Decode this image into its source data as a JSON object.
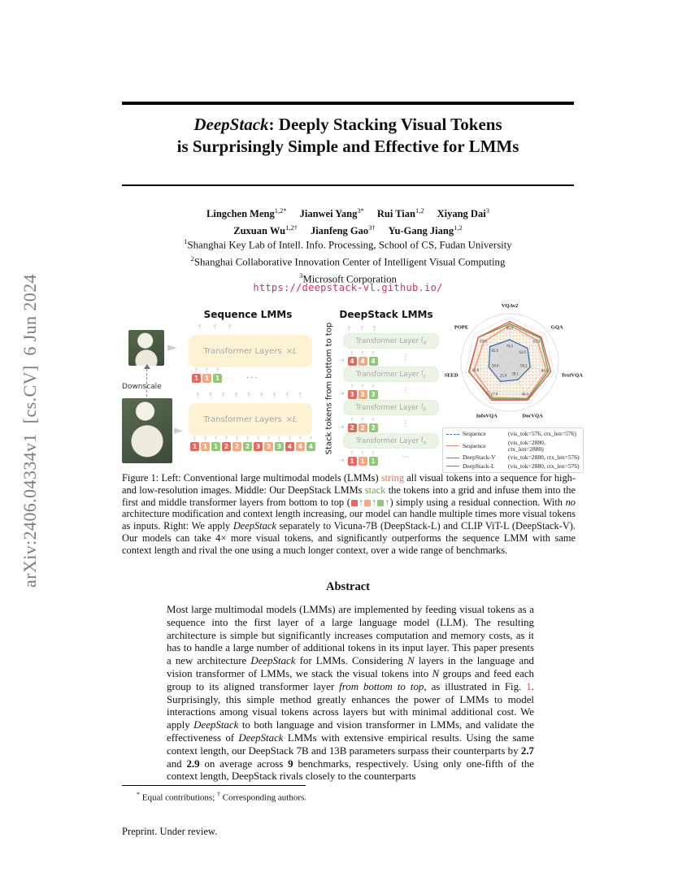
{
  "stamp": {
    "text": "arXiv:2406.04334v1  [cs.CV]  6 Jun 2024"
  },
  "title": {
    "brand": "DeepStack",
    "line1_rest": ": Deeply Stacking Visual Tokens",
    "line2": "is Surprisingly Simple and Effective for LMMs"
  },
  "authors": {
    "rows": [
      [
        {
          "name": "Lingchen Meng",
          "sup": "1,2*"
        },
        {
          "name": "Jianwei Yang",
          "sup": "3*"
        },
        {
          "name": "Rui Tian",
          "sup": "1,2"
        },
        {
          "name": "Xiyang Dai",
          "sup": "3"
        }
      ],
      [
        {
          "name": "Zuxuan Wu",
          "sup": "1,2†"
        },
        {
          "name": "Jianfeng Gao",
          "sup": "3†"
        },
        {
          "name": "Yu-Gang Jiang",
          "sup": "1,2"
        }
      ]
    ]
  },
  "affiliations": [
    {
      "sup": "1",
      "text": "Shanghai Key Lab of Intell. Info. Processing, School of CS, Fudan University"
    },
    {
      "sup": "2",
      "text": "Shanghai Collaborative Innovation Center of Intelligent Visual Computing"
    },
    {
      "sup": "3",
      "text": "Microsoft Corporation"
    }
  ],
  "links": {
    "project_url": "https://deepstack-vl.github.io/"
  },
  "palette": {
    "r": "#e06a5b",
    "s": "#f3a97d",
    "g": "#93c67d",
    "arrow": "#b9b9b9"
  },
  "figure": {
    "left": {
      "title": "Sequence LMMs",
      "downscale_label": "Downscale",
      "box_label": "Transformer Layers",
      "box_mult": "×L",
      "top_tokens": [
        {
          "n": "1",
          "c": "r"
        },
        {
          "n": "1",
          "c": "s"
        },
        {
          "n": "1",
          "c": "g"
        }
      ],
      "top_ellipsis": "···",
      "bottom_tokens": [
        {
          "n": "1",
          "c": "r"
        },
        {
          "n": "1",
          "c": "s"
        },
        {
          "n": "1",
          "c": "g"
        },
        {
          "n": "2",
          "c": "r"
        },
        {
          "n": "2",
          "c": "s"
        },
        {
          "n": "2",
          "c": "g"
        },
        {
          "n": "3",
          "c": "r"
        },
        {
          "n": "3",
          "c": "s"
        },
        {
          "n": "3",
          "c": "g"
        },
        {
          "n": "4",
          "c": "r"
        },
        {
          "n": "4",
          "c": "s"
        },
        {
          "n": "4",
          "c": "g"
        }
      ]
    },
    "middle": {
      "title": "DeepStack LMMs",
      "axis_label": "Stack tokens from bottom to top",
      "box_label": "Transformer Layer",
      "var": "l",
      "layers": [
        {
          "sub": "d",
          "tokens": [
            {
              "n": "4",
              "c": "r"
            },
            {
              "n": "4",
              "c": "s"
            },
            {
              "n": "4",
              "c": "g"
            }
          ],
          "side": "⋮"
        },
        {
          "sub": "c",
          "tokens": [
            {
              "n": "3",
              "c": "r"
            },
            {
              "n": "3",
              "c": "s"
            },
            {
              "n": "3",
              "c": "g"
            }
          ],
          "side": "⋮"
        },
        {
          "sub": "b",
          "tokens": [
            {
              "n": "2",
              "c": "r"
            },
            {
              "n": "2",
              "c": "s"
            },
            {
              "n": "2",
              "c": "g"
            }
          ],
          "side": "⋮"
        },
        {
          "sub": "a",
          "tokens": [
            {
              "n": "1",
              "c": "r"
            },
            {
              "n": "1",
              "c": "s"
            },
            {
              "n": "1",
              "c": "g"
            }
          ],
          "side": "···"
        }
      ]
    }
  },
  "chart_data": {
    "type": "radar",
    "title": "",
    "axes": [
      "VQAv2",
      "GQA",
      "TextVQA",
      "DocVQA",
      "InfoVQA",
      "SEED",
      "POPE"
    ],
    "axis_ranges": [
      [
        75.5,
        81.5
      ],
      [
        60.2,
        63.8
      ],
      [
        52,
        65.5
      ],
      [
        13,
        49
      ],
      [
        13.5,
        40
      ],
      [
        54.2,
        63.6
      ],
      [
        83,
        88.2
      ]
    ],
    "series": [
      {
        "name": "Sequence",
        "spec": "(vis_tok=576, ctx_len=576)",
        "color": "#3a6fb7",
        "dash": true,
        "values": [
          78.5,
          62.0,
          58.2,
          28.1,
          25.8,
          58.6,
          85.9
        ]
      },
      {
        "name": "Sequence",
        "spec": "(vis_tok=2880, ctx_len=2880)",
        "color": "#f08a74",
        "dash": false,
        "values": [
          80.4,
          63.0,
          63.2,
          44.5,
          36.2,
          61.8,
          86.8
        ]
      },
      {
        "name": "DeepStack-V",
        "spec": "(vis_tok=2880, ctx_len=576)",
        "color": "#5c9e4e",
        "dash": false,
        "values": [
          80.6,
          63.3,
          63.8,
          45.2,
          37.0,
          62.9,
          87.6
        ]
      },
      {
        "name": "DeepStack-L",
        "spec": "(vis_tok=2880, ctx_len=576)",
        "color": "#e4574a",
        "dash": false,
        "values": [
          80.9,
          63.4,
          64.5,
          46.0,
          37.8,
          62.8,
          87.6
        ]
      }
    ],
    "outer_labels": [
      "80.9",
      "63.4",
      "64.5",
      "46.0",
      "37.8",
      "62.8",
      "87.6"
    ],
    "inner_labels": [
      "78.5",
      "62.0",
      "58.2",
      "28.1",
      "25.8",
      "58.6",
      "85.9"
    ],
    "legend_position": "bottom",
    "grid": true
  },
  "caption": {
    "segments": [
      {
        "t": "Figure 1:  Left:  Conventional large multimodal models (LMMs) ",
        "s": ""
      },
      {
        "t": "string",
        "s": "salmon"
      },
      {
        "t": " all visual tokens into a sequence for high- and low-resolution images. Middle: Our DeepStack LMMs ",
        "s": ""
      },
      {
        "t": "stack",
        "s": "green"
      },
      {
        "t": " the tokens into a grid and infuse them into the first and middle transformer layers from bottom to top (",
        "s": ""
      },
      {
        "t": "■",
        "s": "sq-r"
      },
      {
        "t": "↑",
        "s": "arrow"
      },
      {
        "t": "■",
        "s": "sq-s"
      },
      {
        "t": "↑",
        "s": "arrow"
      },
      {
        "t": "■",
        "s": "sq-g"
      },
      {
        "t": "↑",
        "s": "arrow"
      },
      {
        "t": ") simply using a residual connection. With ",
        "s": ""
      },
      {
        "t": "no",
        "s": "i"
      },
      {
        "t": " architecture modification and context length increasing, our model can handle multiple times more visual tokens as inputs.  Right:  We apply ",
        "s": ""
      },
      {
        "t": "DeepStack",
        "s": "i"
      },
      {
        "t": " separately to Vicuna-7B (DeepStack-L) and CLIP ViT-L (DeepStack-V). Our models can take 4× more visual tokens, and significantly outperforms the sequence LMM with same context length and rival the one using a much longer context, over a wide range of benchmarks.",
        "s": ""
      }
    ]
  },
  "abstract": {
    "heading": "Abstract",
    "segments": [
      {
        "t": "Most large multimodal models (LMMs) are implemented by feeding visual tokens as a sequence into the first layer of a large language model (LLM). The resulting architecture is simple but significantly increases computation and memory costs, as it has to handle a large number of additional tokens in its input layer. This paper presents a new architecture ",
        "s": ""
      },
      {
        "t": "DeepStack",
        "s": "i"
      },
      {
        "t": " for LMMs. Considering ",
        "s": ""
      },
      {
        "t": "N",
        "s": "i"
      },
      {
        "t": " layers in the language and vision transformer of LMMs, we stack the visual tokens into ",
        "s": ""
      },
      {
        "t": "N",
        "s": "i"
      },
      {
        "t": " groups and feed each group to its aligned transformer layer ",
        "s": ""
      },
      {
        "t": "from bottom to top",
        "s": "i"
      },
      {
        "t": ", as illustrated in Fig. ",
        "s": ""
      },
      {
        "t": "1",
        "s": "link"
      },
      {
        "t": ". Surprisingly, this simple method greatly enhances the power of LMMs to model interactions among visual tokens across layers but with minimal additional cost. We apply ",
        "s": ""
      },
      {
        "t": "DeepStack",
        "s": "i"
      },
      {
        "t": " to both language and vision transformer in LMMs, and validate the effectiveness of ",
        "s": ""
      },
      {
        "t": "DeepStack",
        "s": "i"
      },
      {
        "t": " LMMs with extensive empirical results. Using the same context length, our DeepStack 7B and 13B parameters surpass their counterparts by ",
        "s": ""
      },
      {
        "t": "2.7",
        "s": "b"
      },
      {
        "t": " and ",
        "s": ""
      },
      {
        "t": "2.9",
        "s": "b"
      },
      {
        "t": " on average across ",
        "s": ""
      },
      {
        "t": "9",
        "s": "b"
      },
      {
        "t": " benchmarks, respectively. Using only one-fifth of the context length, DeepStack rivals closely to the counterparts",
        "s": ""
      }
    ]
  },
  "footnote": {
    "segments": [
      {
        "t": "*",
        "s": "sup"
      },
      {
        "t": " Equal contributions; ",
        "s": ""
      },
      {
        "t": "†",
        "s": "sup"
      },
      {
        "t": " Corresponding authors.",
        "s": ""
      }
    ]
  },
  "footer": {
    "text": "Preprint. Under review."
  }
}
